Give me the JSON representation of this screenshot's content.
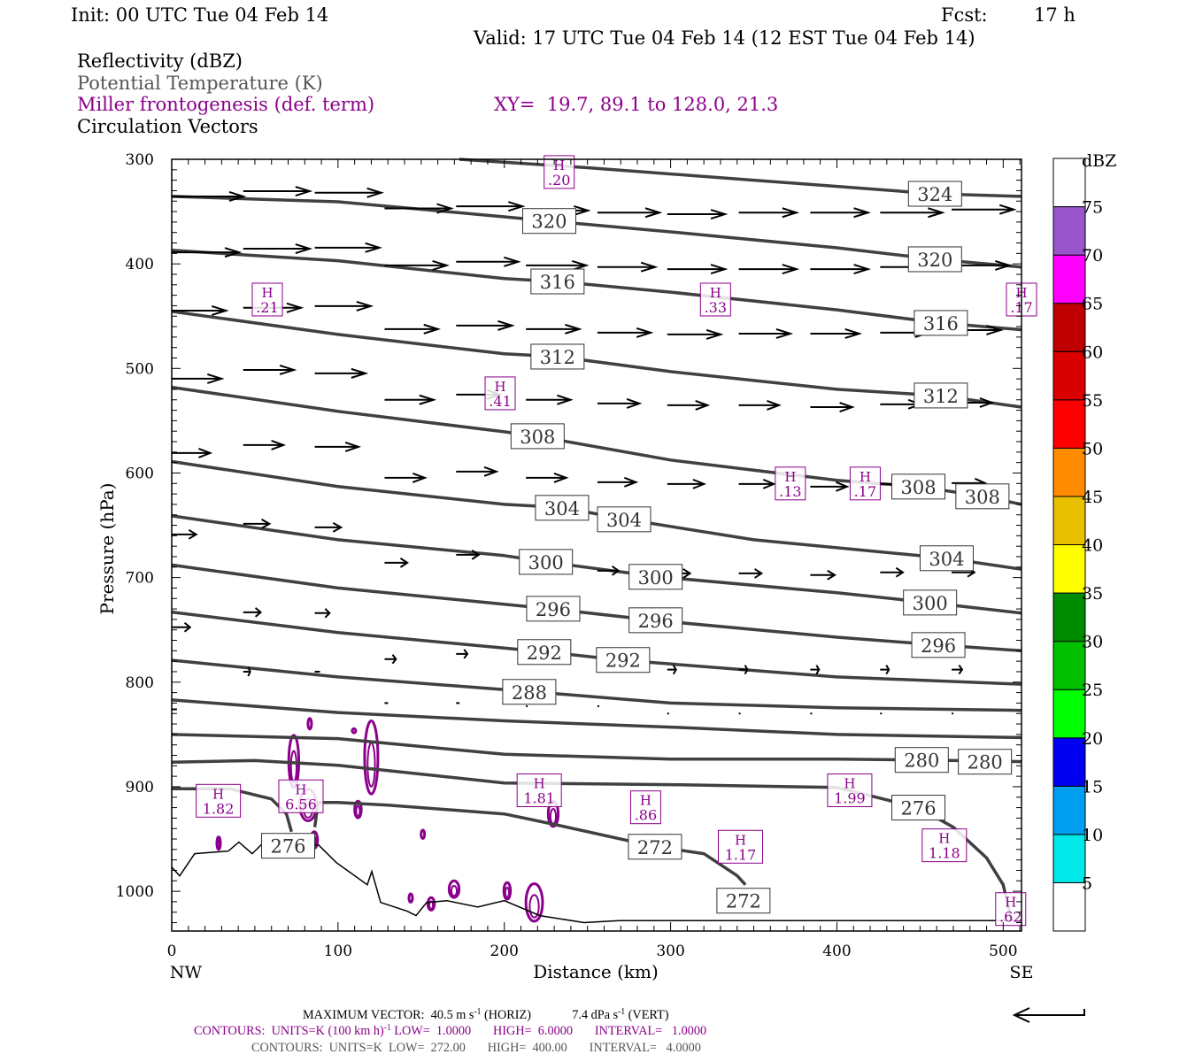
{
  "header": {
    "init": "Init: 00 UTC Tue 04 Feb 14",
    "fcst_label": "Fcst:",
    "fcst_value": "17 h",
    "valid": "Valid: 17 UTC Tue 04 Feb 14 (12 EST Tue 04 Feb 14)",
    "fields": [
      "Reflectivity (dBZ)",
      "Potential Temperature (K)",
      "Miller frontogenesis (def. term)",
      "Circulation Vectors"
    ],
    "xy": "XY=  19.7, 89.1 to 128.0, 21.3"
  },
  "footer": {
    "max_vector_label": "MAXIMUM VECTOR:",
    "max_vector_horiz": "40.5 m s",
    "horiz_tag": "(HORIZ)",
    "max_vector_vert": "7.4 dPa s",
    "vert_tag": "(VERT)",
    "sup": "-1",
    "fronto_contours": "CONTOURS:  UNITS=K (100 km h)",
    "fronto_rest": " LOW=  1.0000       HIGH=  6.0000       INTERVAL=   1.0000",
    "theta_contours": "CONTOURS:  UNITS=K  LOW=  272.00       HIGH=  400.00       INTERVAL=   4.0000"
  },
  "colors": {
    "theta": "#404040",
    "fronto": "#8b008b",
    "vector": "#000000",
    "terrain": "#000000"
  },
  "chart_data": {
    "type": "cross-section",
    "xlabel": "Distance (km)",
    "ylabel": "Pressure (hPa)",
    "xlim": [
      0,
      511
    ],
    "ylim": [
      300,
      1038
    ],
    "xticks": [
      0,
      100,
      200,
      300,
      400,
      500
    ],
    "yticks": [
      300,
      400,
      500,
      600,
      700,
      800,
      900,
      1000
    ],
    "x_end_labels": {
      "left": "NW",
      "right": "SE"
    },
    "colorbar": {
      "title": "dBZ",
      "levels": [
        5,
        10,
        15,
        20,
        25,
        30,
        35,
        40,
        45,
        50,
        55,
        60,
        65,
        70,
        75
      ],
      "colors": [
        "#ffffff",
        "#00e8e8",
        "#009ff0",
        "#0000f0",
        "#00ff00",
        "#00c000",
        "#008c00",
        "#ffff00",
        "#e8c000",
        "#ff8c00",
        "#ff0000",
        "#d80000",
        "#c00000",
        "#ff00ff",
        "#9955cc",
        "#ffffff"
      ]
    },
    "isentropes": [
      {
        "theta": 324,
        "points": [
          [
            173,
            300
          ],
          [
            250,
            308
          ],
          [
            350,
            320
          ],
          [
            459,
            333
          ],
          [
            511,
            335.5
          ]
        ]
      },
      {
        "theta": 320,
        "points": [
          [
            0,
            335.5
          ],
          [
            100,
            340.6
          ],
          [
            200,
            355
          ],
          [
            227,
            359
          ],
          [
            300,
            369.4
          ],
          [
            400,
            384.6
          ],
          [
            459,
            395.6
          ],
          [
            511,
            403
          ]
        ]
      },
      {
        "theta": 316,
        "points": [
          [
            0,
            387
          ],
          [
            100,
            397
          ],
          [
            200,
            414
          ],
          [
            232,
            417
          ],
          [
            300,
            427
          ],
          [
            400,
            444
          ],
          [
            462,
            456.5
          ],
          [
            511,
            463
          ]
        ]
      },
      {
        "theta": 312,
        "points": [
          [
            0,
            445.5
          ],
          [
            100,
            467.5
          ],
          [
            200,
            486
          ],
          [
            232,
            488.7
          ],
          [
            300,
            503
          ],
          [
            400,
            520
          ],
          [
            462,
            526
          ],
          [
            511,
            537
          ]
        ]
      },
      {
        "theta": 308,
        "points": [
          [
            0,
            518
          ],
          [
            100,
            541
          ],
          [
            200,
            560.6
          ],
          [
            220,
            565
          ],
          [
            300,
            587.6
          ],
          [
            400,
            607
          ],
          [
            449,
            613
          ],
          [
            487,
            622
          ],
          [
            511,
            630
          ]
        ]
      },
      {
        "theta": 304,
        "points": [
          [
            0,
            589
          ],
          [
            100,
            613
          ],
          [
            200,
            630
          ],
          [
            235,
            633
          ],
          [
            272,
            644
          ],
          [
            350,
            663.8
          ],
          [
            466,
            681.5
          ],
          [
            511,
            692
          ]
        ]
      },
      {
        "theta": 300,
        "points": [
          [
            0,
            641
          ],
          [
            100,
            663.8
          ],
          [
            200,
            679
          ],
          [
            225,
            685
          ],
          [
            291,
            699
          ],
          [
            400,
            714.5
          ],
          [
            456,
            724
          ],
          [
            511,
            734
          ]
        ]
      },
      {
        "theta": 296,
        "points": [
          [
            0,
            688
          ],
          [
            100,
            710
          ],
          [
            229,
            730
          ],
          [
            291,
            741
          ],
          [
            400,
            757
          ],
          [
            461,
            764.5
          ],
          [
            511,
            770
          ]
        ]
      },
      {
        "theta": 292,
        "points": [
          [
            0,
            733
          ],
          [
            100,
            752.6
          ],
          [
            224,
            771
          ],
          [
            271,
            779
          ],
          [
            400,
            795
          ],
          [
            511,
            802
          ]
        ]
      },
      {
        "theta": 288,
        "points": [
          [
            0,
            779
          ],
          [
            100,
            795
          ],
          [
            215,
            809
          ],
          [
            300,
            820
          ],
          [
            400,
            824.5
          ],
          [
            511,
            827
          ]
        ]
      },
      {
        "theta": 284,
        "points": [
          [
            0,
            817
          ],
          [
            100,
            829
          ],
          [
            200,
            837
          ],
          [
            300,
            843
          ],
          [
            400,
            850
          ],
          [
            511,
            853
          ]
        ]
      },
      {
        "theta": 280,
        "points": [
          [
            0,
            850
          ],
          [
            100,
            854
          ],
          [
            200,
            869
          ],
          [
            300,
            873.6
          ],
          [
            400,
            873.6
          ],
          [
            451,
            874.4
          ],
          [
            511,
            876
          ]
        ]
      },
      {
        "theta": 276,
        "points": [
          [
            0,
            876.5
          ],
          [
            50,
            875
          ],
          [
            100,
            879.5
          ],
          [
            200,
            896.4
          ],
          [
            300,
            898
          ],
          [
            400,
            900.7
          ],
          [
            449,
            920
          ],
          [
            470,
            938.7
          ],
          [
            490,
            968
          ],
          [
            500,
            993.7
          ],
          [
            505,
            1027.6
          ]
        ]
      },
      {
        "theta": 272,
        "points": [
          [
            0,
            902
          ],
          [
            35,
            902
          ],
          [
            60,
            911.7
          ],
          [
            69,
            926
          ],
          [
            72,
            943
          ]
        ]
      },
      {
        "theta": 272,
        "points": [
          [
            86,
            938.7
          ],
          [
            88,
            915
          ],
          [
            100,
            915
          ],
          [
            130,
            917.6
          ],
          [
            200,
            926
          ],
          [
            230,
            936
          ],
          [
            290,
            957
          ],
          [
            320,
            964
          ],
          [
            340,
            985
          ],
          [
            345,
            993.7
          ]
        ]
      }
    ],
    "isentrope_labels": [
      [
        324,
        459,
        333
      ],
      [
        320,
        227,
        359
      ],
      [
        320,
        459,
        395.6
      ],
      [
        316,
        232,
        416.8
      ],
      [
        316,
        462.5,
        456.5
      ],
      [
        312,
        232,
        488.7
      ],
      [
        312,
        462.5,
        525.9
      ],
      [
        308,
        220,
        564.8
      ],
      [
        308,
        449,
        613
      ],
      [
        308,
        487.5,
        622.3
      ],
      [
        304,
        234.7,
        633.3
      ],
      [
        304,
        272,
        644.3
      ],
      [
        304,
        466,
        681.5
      ],
      [
        300,
        225,
        685
      ],
      [
        300,
        291,
        699.3
      ],
      [
        300,
        456,
        723.9
      ],
      [
        296,
        229.4,
        729.8
      ],
      [
        296,
        291,
        740.8
      ],
      [
        296,
        461,
        764.5
      ],
      [
        292,
        224,
        771.2
      ],
      [
        292,
        271.4,
        778.8
      ],
      [
        288,
        215,
        809.3
      ],
      [
        280,
        451,
        874.4
      ],
      [
        280,
        489,
        876.1
      ],
      [
        276,
        449,
        920
      ],
      [
        276,
        70,
        956.5
      ],
      [
        272,
        290.6,
        957.4
      ],
      [
        272,
        343.8,
        1009
      ]
    ],
    "terrain": [
      [
        0,
        976.8
      ],
      [
        4.8,
        985.3
      ],
      [
        13.8,
        964
      ],
      [
        34,
        961.6
      ],
      [
        40.4,
        953
      ],
      [
        48.4,
        964
      ],
      [
        56.4,
        951.4
      ],
      [
        75,
        951.4
      ],
      [
        80.4,
        957.4
      ],
      [
        88.3,
        955.7
      ],
      [
        99,
        972.6
      ],
      [
        117.6,
        993.7
      ],
      [
        120.3,
        981
      ],
      [
        125.6,
        1010.7
      ],
      [
        141.6,
        1019
      ],
      [
        146.9,
        1023.3
      ],
      [
        153.3,
        1010.7
      ],
      [
        165.5,
        1009
      ],
      [
        184,
        1015
      ],
      [
        200,
        1009
      ],
      [
        221.4,
        1023.3
      ],
      [
        248,
        1030
      ],
      [
        269,
        1028
      ],
      [
        511,
        1028
      ]
    ],
    "frontogenesis_maxima": [
      [
        ".20",
        233,
        349
      ],
      [
        ".21",
        57.5,
        433.7
      ],
      [
        ".33",
        327,
        433.7
      ],
      [
        ".17",
        478,
        433.7
      ],
      [
        ".41",
        197.5,
        560.6
      ],
      [
        ".13",
        372,
        609.6
      ],
      [
        ".17",
        417,
        609.6
      ],
      [
        "1.82",
        28,
        913
      ],
      [
        "6.56",
        77.7,
        946
      ],
      [
        "1.81",
        221,
        903
      ],
      [
        ".86",
        285,
        956.5
      ],
      [
        "1.17",
        342,
        957
      ],
      [
        "1.99",
        407.7,
        903
      ],
      [
        "1.18",
        464.6,
        955.6
      ],
      [
        ".62",
        504.5,
        1016.6
      ]
    ],
    "frontogenesis_contours": [
      [
        73.4,
        875.8,
        3,
        25
      ],
      [
        120,
        872,
        4,
        35
      ],
      [
        82,
        917.6,
        5,
        15
      ],
      [
        112,
        921.8,
        2,
        8
      ],
      [
        229.4,
        926,
        3,
        12
      ],
      [
        218,
        1010.7,
        5,
        18
      ],
      [
        169.8,
        998,
        3,
        8
      ],
      [
        201.7,
        999.6,
        2,
        8
      ],
      [
        143.7,
        1006.4,
        1,
        4
      ],
      [
        28.2,
        954,
        1,
        6
      ],
      [
        151,
        945.5,
        1,
        4
      ],
      [
        83,
        839.8,
        1,
        5
      ],
      [
        109.6,
        846.5,
        1,
        2
      ],
      [
        85.7,
        951,
        2,
        8
      ],
      [
        156,
        1012,
        2,
        6
      ]
    ],
    "reference_vector_ms": 40.5,
    "vectors": [
      [
        0,
        335.5,
        41
      ],
      [
        43,
        330.5,
        38
      ],
      [
        86,
        332,
        38
      ],
      [
        128,
        347,
        38
      ],
      [
        171,
        345,
        38
      ],
      [
        213,
        349,
        35.5
      ],
      [
        256,
        351,
        35.5
      ],
      [
        298,
        352.5,
        33
      ],
      [
        341,
        351,
        33
      ],
      [
        384,
        351,
        33
      ],
      [
        426,
        351,
        35.5
      ],
      [
        469,
        348,
        35.5
      ],
      [
        0,
        389,
        38.5
      ],
      [
        43,
        385.5,
        38
      ],
      [
        86,
        384.5,
        37
      ],
      [
        128,
        401.5,
        35.5
      ],
      [
        171,
        398,
        35.5
      ],
      [
        213,
        401.5,
        34.5
      ],
      [
        256,
        403,
        33
      ],
      [
        298,
        405,
        33
      ],
      [
        341,
        405,
        33
      ],
      [
        384,
        405,
        33
      ],
      [
        426,
        403,
        33
      ],
      [
        469,
        401.5,
        33
      ],
      [
        0,
        444.7,
        31
      ],
      [
        43,
        442,
        33
      ],
      [
        86,
        440.4,
        32
      ],
      [
        128,
        462.4,
        30.5
      ],
      [
        171,
        459,
        32
      ],
      [
        213,
        462.4,
        30.5
      ],
      [
        256,
        465.8,
        30.5
      ],
      [
        298,
        467.5,
        30.5
      ],
      [
        341,
        466.7,
        29.5
      ],
      [
        384,
        466.7,
        28
      ],
      [
        426,
        465.8,
        28
      ],
      [
        469,
        463.3,
        28
      ],
      [
        0,
        509.8,
        28.5
      ],
      [
        43,
        501.4,
        29
      ],
      [
        86,
        504.7,
        29
      ],
      [
        128,
        530,
        28
      ],
      [
        171,
        525,
        25
      ],
      [
        213,
        530,
        25.5
      ],
      [
        256,
        533.5,
        24
      ],
      [
        298,
        535.2,
        23
      ],
      [
        341,
        535.2,
        23
      ],
      [
        384,
        537,
        24
      ],
      [
        426,
        534.3,
        23
      ],
      [
        469,
        532.7,
        23
      ],
      [
        0,
        580.9,
        22
      ],
      [
        43,
        573.3,
        23
      ],
      [
        86,
        575,
        25
      ],
      [
        128,
        604.6,
        23
      ],
      [
        171,
        598.6,
        23
      ],
      [
        213,
        604.6,
        23
      ],
      [
        256,
        608.8,
        22
      ],
      [
        298,
        610.5,
        21
      ],
      [
        341,
        610.5,
        20
      ],
      [
        384,
        613,
        21
      ],
      [
        426,
        610.5,
        20
      ],
      [
        469,
        609.6,
        19
      ],
      [
        0,
        658.7,
        14
      ],
      [
        43,
        648.6,
        15
      ],
      [
        86,
        652,
        15
      ],
      [
        128,
        685.8,
        13
      ],
      [
        171,
        678.2,
        13
      ],
      [
        213,
        689.2,
        13
      ],
      [
        256,
        693.4,
        12
      ],
      [
        298,
        696,
        13
      ],
      [
        341,
        696,
        13
      ],
      [
        384,
        697.6,
        14
      ],
      [
        426,
        695,
        13
      ],
      [
        469,
        695,
        13
      ],
      [
        0,
        747.5,
        10.5
      ],
      [
        43,
        733.2,
        10
      ],
      [
        86,
        734,
        8.5
      ],
      [
        128,
        778,
        6.5
      ],
      [
        171,
        773,
        6.5
      ],
      [
        213,
        778.8,
        6
      ],
      [
        256,
        786.5,
        4
      ],
      [
        298,
        788,
        5
      ],
      [
        341,
        788,
        5
      ],
      [
        384,
        788,
        5
      ],
      [
        426,
        788,
        5
      ],
      [
        469,
        788,
        6
      ],
      [
        0,
        826,
        3
      ],
      [
        43,
        790,
        4
      ],
      [
        86,
        790,
        3
      ],
      [
        128,
        820,
        2
      ],
      [
        171,
        820,
        2
      ],
      [
        213,
        823,
        1
      ],
      [
        256,
        823,
        1
      ],
      [
        298,
        830,
        1
      ],
      [
        341,
        830,
        1
      ],
      [
        384,
        830,
        1
      ],
      [
        426,
        830,
        1
      ],
      [
        469,
        830,
        1
      ]
    ]
  }
}
